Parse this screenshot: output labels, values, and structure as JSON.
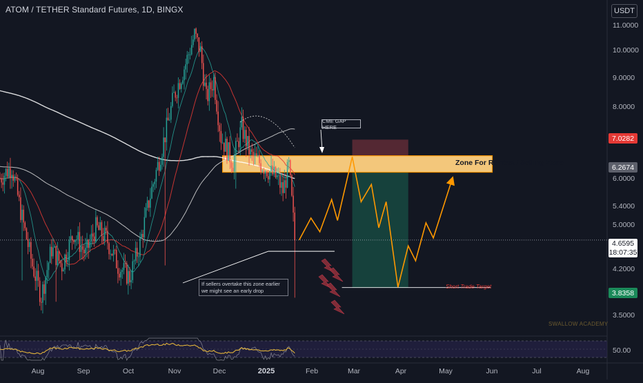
{
  "header": {
    "symbol_title": "ATOM / TETHER Standard Futures, 1D, BINGX",
    "currency": "USDT"
  },
  "price_scale": {
    "labels": [
      "11.0000",
      "10.0000",
      "9.0000",
      "8.0000",
      "6.0000",
      "5.4000",
      "5.0000",
      "4.2000",
      "3.5000"
    ],
    "rsi_label": "50.00"
  },
  "price_badges": {
    "stop": "7.0282",
    "zone": "6.2674",
    "current_price": "4.6595",
    "countdown": "18:07:35",
    "target": "3.8358"
  },
  "time_axis": {
    "labels": [
      "Aug",
      "Sep",
      "Oct",
      "Nov",
      "Dec",
      "2025",
      "Feb",
      "Mar",
      "Apr",
      "May",
      "Jun",
      "Jul",
      "Aug"
    ]
  },
  "annotations": {
    "zone_label": "Zone For Re-Test / Selling Zone",
    "cme_gap": "CME GAP HERE",
    "note_line1": "If sellers overtake this zone earlier",
    "note_line2": "we might see an early drop",
    "target_label": "Short Trade Target",
    "watermark": "SWALLOW ACADEMY"
  },
  "colors": {
    "background": "#131722",
    "bull_candle": "#26a69a",
    "bear_candle": "#ef5350",
    "zone_fill": "#ffd180",
    "projection": "#ff9800",
    "stop_zone": "#5c2a35",
    "target_zone": "#17463f",
    "rsi_line": "#e0b23a"
  },
  "chart_data": {
    "type": "candlestick",
    "title": "ATOM / TETHER Standard Futures, 1D, BINGX",
    "scale": "log",
    "ylim": [
      3.3,
      11.5
    ],
    "x_range": [
      "2024-07-16",
      "2025-08-31"
    ],
    "candles": {
      "from": "2024-07-16",
      "to": "2025-02-04",
      "path": [
        [
          0,
          6.0
        ],
        [
          8,
          6.3
        ],
        [
          15,
          5.1
        ],
        [
          22,
          4.2
        ],
        [
          28,
          3.7
        ],
        [
          35,
          4.5
        ],
        [
          42,
          4.2
        ],
        [
          50,
          4.8
        ],
        [
          58,
          4.4
        ],
        [
          65,
          4.9
        ],
        [
          72,
          4.7
        ],
        [
          80,
          4.2
        ],
        [
          88,
          4.0
        ],
        [
          95,
          4.6
        ],
        [
          102,
          5.6
        ],
        [
          110,
          6.8
        ],
        [
          118,
          8.4
        ],
        [
          126,
          9.6
        ],
        [
          132,
          10.8
        ],
        [
          136,
          10.1
        ],
        [
          140,
          8.3
        ],
        [
          145,
          9.0
        ],
        [
          150,
          7.1
        ],
        [
          158,
          6.4
        ],
        [
          164,
          7.4
        ],
        [
          170,
          6.6
        ],
        [
          176,
          6.4
        ],
        [
          182,
          6.2
        ],
        [
          188,
          6.0
        ],
        [
          192,
          5.7
        ],
        [
          196,
          6.3
        ],
        [
          200,
          4.7
        ]
      ]
    },
    "trade_setup": {
      "type": "short",
      "entry": 6.2674,
      "stop": 7.0282,
      "target": 3.8358,
      "zone": [
        6.15,
        6.58
      ]
    },
    "projection_path": [
      {
        "date": "2025-02-04",
        "price": 4.66
      },
      {
        "date": "2025-02-12",
        "price": 5.1
      },
      {
        "date": "2025-02-18",
        "price": 4.82
      },
      {
        "date": "2025-02-26",
        "price": 5.5
      },
      {
        "date": "2025-03-02",
        "price": 5.05
      },
      {
        "date": "2025-03-12",
        "price": 6.55
      },
      {
        "date": "2025-03-18",
        "price": 5.45
      },
      {
        "date": "2025-03-25",
        "price": 5.85
      },
      {
        "date": "2025-03-30",
        "price": 4.9
      },
      {
        "date": "2025-04-04",
        "price": 5.45
      },
      {
        "date": "2025-04-12",
        "price": 3.84
      },
      {
        "date": "2025-04-19",
        "price": 4.55
      },
      {
        "date": "2025-04-24",
        "price": 4.28
      },
      {
        "date": "2025-05-01",
        "price": 5.0
      },
      {
        "date": "2025-05-06",
        "price": 4.7
      },
      {
        "date": "2025-05-19",
        "price": 6.0
      }
    ],
    "early_drop_level": 4.45,
    "rsi": {
      "level": 50.0
    }
  }
}
